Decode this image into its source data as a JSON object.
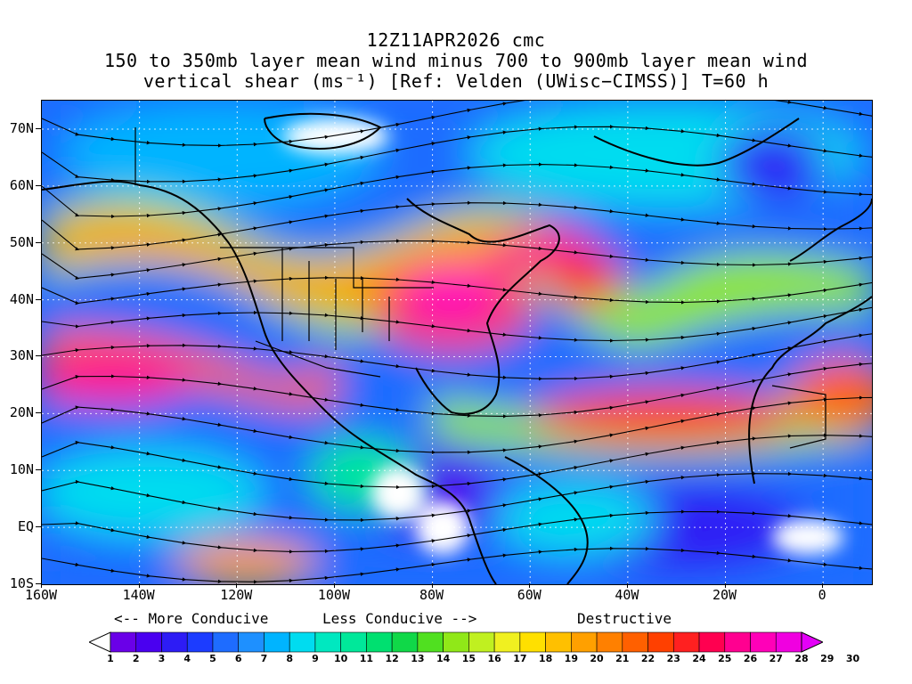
{
  "title": {
    "line1": "12Z11APR2026 cmc",
    "line2": "150 to 350mb layer mean wind minus 700 to 900mb layer mean wind",
    "line3": "vertical shear (ms⁻¹) [Ref: Velden (UWisc−CIMSS)] T=60 h"
  },
  "axes": {
    "lat_labels": [
      "70N",
      "60N",
      "50N",
      "40N",
      "30N",
      "20N",
      "10N",
      "EQ",
      "10S"
    ],
    "lat_values": [
      70,
      60,
      50,
      40,
      30,
      20,
      10,
      0,
      -10
    ],
    "lon_labels": [
      "160W",
      "140W",
      "120W",
      "100W",
      "80W",
      "60W",
      "40W",
      "20W",
      "0"
    ],
    "lon_values": [
      -160,
      -140,
      -120,
      -100,
      -80,
      -60,
      -40,
      -20,
      0
    ],
    "lat_range": [
      -10,
      75
    ],
    "lon_range": [
      -160,
      10
    ]
  },
  "legend": {
    "more_conducive": "<-- More Conducive",
    "less_conducive": "Less Conducive -->",
    "destructive": "Destructive",
    "units": "ms⁻¹",
    "levels": [
      1,
      2,
      3,
      4,
      5,
      6,
      7,
      8,
      9,
      10,
      11,
      12,
      13,
      14,
      15,
      16,
      17,
      18,
      19,
      20,
      21,
      22,
      23,
      24,
      25,
      26,
      27,
      28,
      29,
      30
    ],
    "colors": [
      "#ffffff",
      "#6a00e8",
      "#4a00f0",
      "#2d1cf5",
      "#1c3cff",
      "#1e6cff",
      "#1e90ff",
      "#00b4ff",
      "#00dcf0",
      "#00e8c0",
      "#00e89a",
      "#00e070",
      "#10d848",
      "#50e020",
      "#90e818",
      "#c0f020",
      "#f0f020",
      "#ffe000",
      "#ffc000",
      "#ffa000",
      "#ff8000",
      "#ff6000",
      "#ff4000",
      "#ff2020",
      "#ff0050",
      "#ff0090",
      "#ff00b8",
      "#f000e0",
      "#e400f8"
    ]
  }
}
